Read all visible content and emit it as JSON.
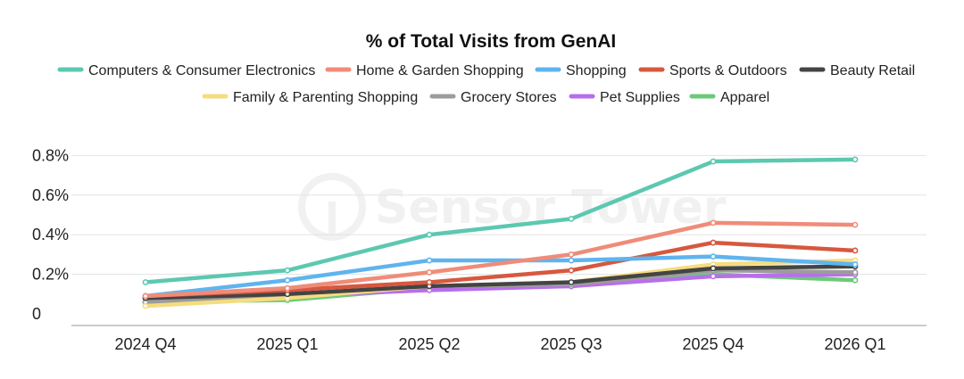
{
  "chart_data": {
    "type": "line",
    "title": "% of Total Visits from GenAI",
    "xlabel": "",
    "ylabel": "",
    "categories": [
      "2024 Q4",
      "2025 Q1",
      "2025 Q2",
      "2025 Q3",
      "2025 Q4",
      "2026 Q1"
    ],
    "ylim": [
      0,
      0.9
    ],
    "yticks": [
      0,
      0.2,
      0.4,
      0.6,
      0.8
    ],
    "ytick_labels": [
      "0",
      "0.2%",
      "0.4%",
      "0.6%",
      "0.8%"
    ],
    "grid": true,
    "legend_position": "top",
    "watermark": "Sensor Tower",
    "series": [
      {
        "name": "Computers & Consumer Electronics",
        "color": "#5cc8b0",
        "values": [
          0.16,
          0.22,
          0.4,
          0.48,
          0.77,
          0.78
        ]
      },
      {
        "name": "Home & Garden Shopping",
        "color": "#ef8c79",
        "values": [
          0.09,
          0.13,
          0.21,
          0.3,
          0.46,
          0.45
        ]
      },
      {
        "name": "Shopping",
        "color": "#5fb4ee",
        "values": [
          0.09,
          0.17,
          0.27,
          0.27,
          0.29,
          0.25
        ]
      },
      {
        "name": "Sports & Outdoors",
        "color": "#d6583f",
        "values": [
          0.09,
          0.12,
          0.16,
          0.22,
          0.36,
          0.32
        ]
      },
      {
        "name": "Beauty Retail",
        "color": "#444444",
        "values": [
          0.08,
          0.1,
          0.14,
          0.16,
          0.23,
          0.24
        ]
      },
      {
        "name": "Family & Parenting Shopping",
        "color": "#f5dc7e",
        "values": [
          0.04,
          0.08,
          0.14,
          0.16,
          0.25,
          0.27
        ]
      },
      {
        "name": "Grocery Stores",
        "color": "#9c9c9c",
        "values": [
          0.06,
          0.09,
          0.14,
          0.15,
          0.22,
          0.21
        ]
      },
      {
        "name": "Pet Supplies",
        "color": "#b86fea",
        "values": [
          0.08,
          0.09,
          0.12,
          0.14,
          0.19,
          0.2
        ]
      },
      {
        "name": "Apparel",
        "color": "#6dc97a",
        "values": [
          0.06,
          0.07,
          0.13,
          0.14,
          0.2,
          0.17
        ]
      }
    ]
  }
}
